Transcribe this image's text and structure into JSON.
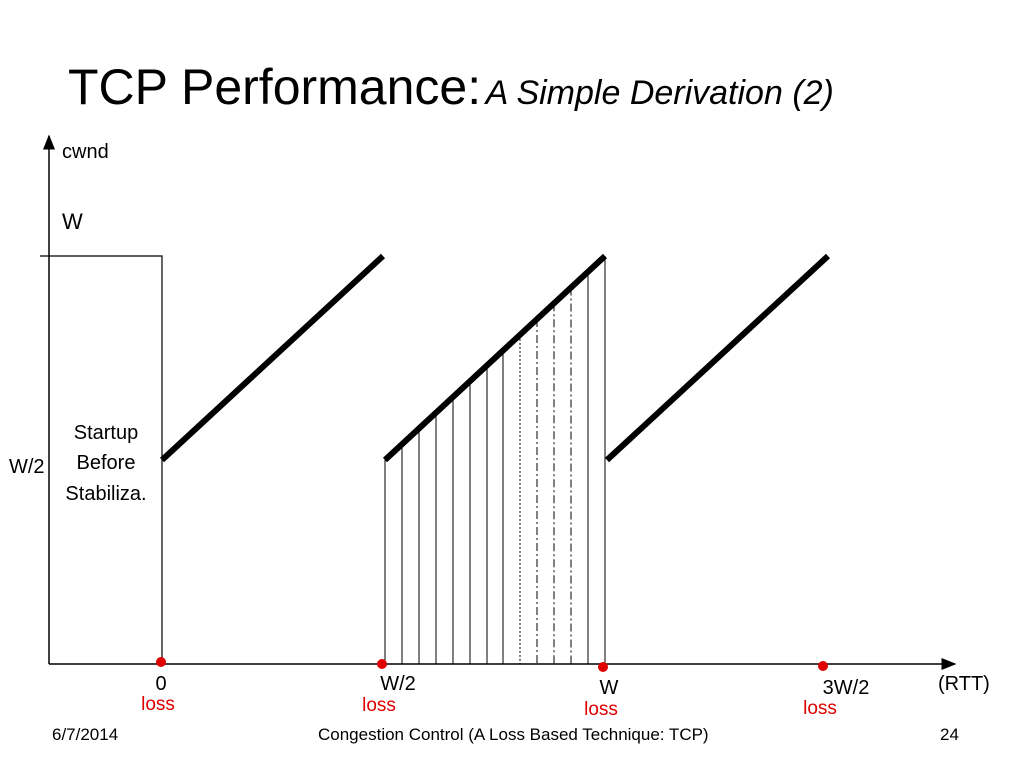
{
  "slide": {
    "title": "TCP Performance:",
    "subtitle": "A Simple Derivation (2)"
  },
  "diagram": {
    "y_axis_label": "cwnd",
    "x_axis_unit": "(RTT)",
    "level_w": "W",
    "level_half_w": "W/2",
    "startup_note": [
      "Startup",
      "Before",
      "Stabiliza."
    ],
    "x_ticks": [
      "0",
      "W/2",
      "W",
      "3W/2"
    ],
    "loss_label": "loss",
    "colors": {
      "line": "#000000",
      "loss_marker": "#e00000"
    }
  },
  "footer": {
    "date": "6/7/2014",
    "center": "Congestion Control (A Loss Based Technique: TCP)",
    "page": "24"
  }
}
